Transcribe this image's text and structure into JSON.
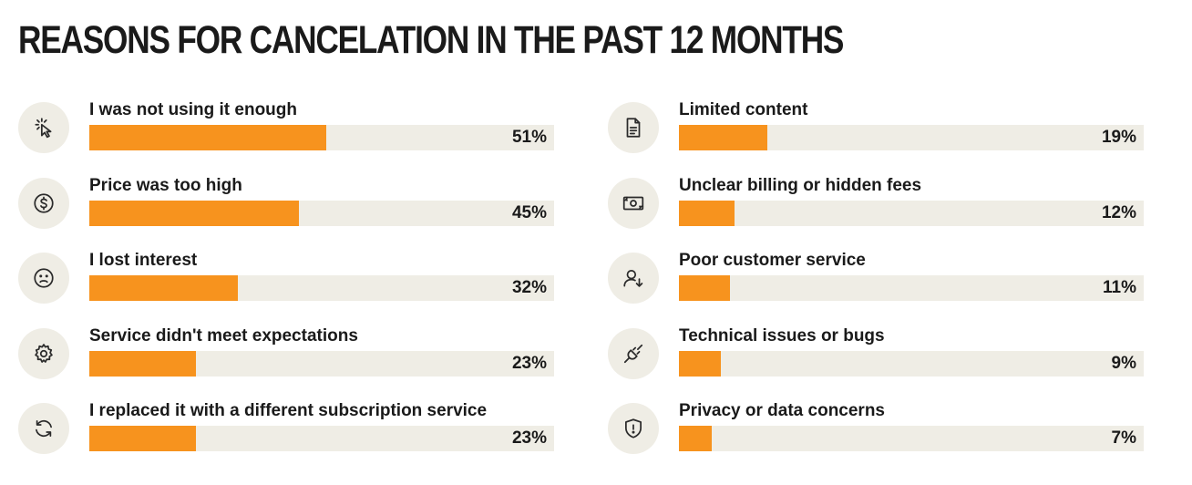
{
  "chart_data": {
    "type": "bar",
    "title": "REASONS FOR CANCELATION IN THE PAST 12 MONTHS",
    "unit": "%",
    "xlim": [
      0,
      100
    ],
    "colors": {
      "bar": "#f7931e",
      "track": "#efede5",
      "icon_bg": "#efede5"
    },
    "left_column": [
      {
        "label": "I was not using it enough",
        "value": 51,
        "display": "51%",
        "icon": "cursor-click-icon"
      },
      {
        "label": "Price was too high",
        "value": 45,
        "display": "45%",
        "icon": "dollar-circle-icon"
      },
      {
        "label": "I lost interest",
        "value": 32,
        "display": "32%",
        "icon": "sad-face-icon"
      },
      {
        "label": "Service didn't meet expectations",
        "value": 23,
        "display": "23%",
        "icon": "gear-icon"
      },
      {
        "label": "I replaced it with a different subscription service",
        "value": 23,
        "display": "23%",
        "icon": "refresh-icon"
      }
    ],
    "right_column": [
      {
        "label": "Limited content",
        "value": 19,
        "display": "19%",
        "icon": "document-icon"
      },
      {
        "label": "Unclear billing or hidden fees",
        "value": 12,
        "display": "12%",
        "icon": "banknote-icon"
      },
      {
        "label": "Poor customer service",
        "value": 11,
        "display": "11%",
        "icon": "user-down-icon"
      },
      {
        "label": "Technical issues or bugs",
        "value": 9,
        "display": "9%",
        "icon": "unplugged-icon"
      },
      {
        "label": "Privacy or data concerns",
        "value": 7,
        "display": "7%",
        "icon": "shield-alert-icon"
      }
    ]
  }
}
